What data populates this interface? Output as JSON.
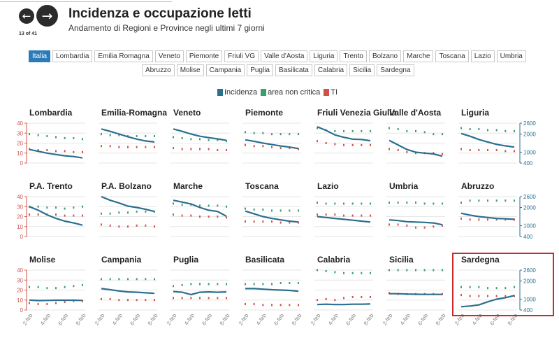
{
  "nav": {
    "prev_icon": "←",
    "next_icon": "→",
    "counter": "13 of 41"
  },
  "header": {
    "title": "Incidenza e occupazione letti",
    "subtitle": "Andamento di Regioni e Province negli ultimi 7 giorni"
  },
  "tabs": {
    "row1": [
      "Italia",
      "Lombardia",
      "Emilia Romagna",
      "Veneto",
      "Piemonte",
      "Friuli VG",
      "Valle d'Aosta",
      "Liguria",
      "Trento",
      "Bolzano",
      "Marche",
      "Toscana",
      "Lazio",
      "Umbria"
    ],
    "row2": [
      "Abruzzo",
      "Molise",
      "Campania",
      "Puglia",
      "Basilicata",
      "Calabria",
      "Sicilia",
      "Sardegna"
    ],
    "active": "Italia"
  },
  "legend": [
    {
      "label": "Incidenza",
      "color": "#2a6f8f"
    },
    {
      "label": "area non critica",
      "color": "#3a9e6e"
    },
    {
      "label": "TI",
      "color": "#d0514a"
    }
  ],
  "chart_data": {
    "type": "line",
    "x": [
      "2-feb",
      "3-feb",
      "4-feb",
      "5-feb",
      "6-feb",
      "7-feb",
      "8-feb"
    ],
    "x_tick_labels": [
      "2-feb",
      "4-feb",
      "6-feb",
      "8-feb"
    ],
    "left_axis": {
      "ticks": [
        0,
        10,
        20,
        30,
        40
      ],
      "ylim": [
        0,
        40
      ],
      "color": "#d0514a"
    },
    "right_axis": {
      "ticks": [
        400,
        1000,
        2000,
        2600
      ],
      "ylim": [
        400,
        2600
      ],
      "color": "#2a6f8f"
    },
    "highlighted_panel": "Sardegna",
    "panels": [
      {
        "region": "Lombardia",
        "incidenza": [
          1150,
          1050,
          950,
          870,
          800,
          760,
          680
        ],
        "area_non_critica": [
          29,
          28,
          27,
          26,
          25,
          25,
          24
        ],
        "ti": [
          14,
          13,
          13,
          12,
          12,
          11,
          11
        ]
      },
      {
        "region": "Emilia-Romagna",
        "incidenza": [
          2280,
          2150,
          2000,
          1850,
          1720,
          1620,
          1560
        ],
        "area_non_critica": [
          29,
          28,
          28,
          27,
          27,
          27,
          27
        ],
        "ti": [
          17,
          17,
          16,
          16,
          16,
          16,
          16
        ]
      },
      {
        "region": "Veneto",
        "incidenza": [
          2280,
          2150,
          2000,
          1880,
          1800,
          1730,
          1650
        ],
        "area_non_critica": [
          26,
          25,
          24,
          24,
          23,
          23,
          22
        ],
        "ti": [
          15,
          14,
          14,
          14,
          14,
          13,
          13
        ]
      },
      {
        "region": "Piemonte",
        "incidenza": [
          1680,
          1600,
          1500,
          1420,
          1340,
          1280,
          1200
        ],
        "area_non_critica": [
          31,
          30,
          30,
          29,
          29,
          29,
          29
        ],
        "ti": [
          18,
          17,
          17,
          16,
          15,
          15,
          14
        ]
      },
      {
        "region": "Friuli Venezia Giulia",
        "incidenza": [
          2400,
          2200,
          1950,
          1820,
          1720,
          1700,
          1630
        ],
        "area_non_critica": [
          35,
          33,
          32,
          32,
          32,
          32,
          32
        ],
        "ti": [
          22,
          20,
          19,
          18,
          18,
          18,
          18
        ]
      },
      {
        "region": "Valle d'Aosta",
        "incidenza": [
          1650,
          1400,
          1150,
          1000,
          950,
          900,
          780
        ],
        "area_non_critica": [
          35,
          34,
          32,
          32,
          31,
          29,
          29
        ],
        "ti": [
          14,
          13,
          11,
          10,
          10,
          10,
          9
        ]
      },
      {
        "region": "Liguria",
        "incidenza": [
          2030,
          1880,
          1700,
          1560,
          1430,
          1350,
          1280
        ],
        "area_non_critica": [
          35,
          34,
          34,
          33,
          33,
          32,
          32
        ],
        "ti": [
          14,
          13,
          13,
          13,
          13,
          12,
          12
        ]
      },
      {
        "region": "P.A. Trento",
        "incidenza": [
          2050,
          1850,
          1600,
          1400,
          1250,
          1150,
          1030
        ],
        "area_non_critica": [
          30,
          30,
          29,
          29,
          28,
          29,
          30
        ],
        "ti": [
          22,
          22,
          22,
          22,
          21,
          21,
          21
        ]
      },
      {
        "region": "P.A. Bolzano",
        "incidenza": [
          2600,
          2400,
          2250,
          2080,
          2000,
          1900,
          1780
        ],
        "area_non_critica": [
          23,
          23,
          24,
          24,
          25,
          25,
          25
        ],
        "ti": [
          12,
          11,
          10,
          10,
          11,
          11,
          10
        ]
      },
      {
        "region": "Marche",
        "incidenza": [
          2400,
          2300,
          2200,
          2000,
          1850,
          1780,
          1520
        ],
        "area_non_critica": [
          33,
          32,
          32,
          31,
          31,
          31,
          30
        ],
        "ti": [
          22,
          21,
          21,
          20,
          20,
          20,
          19
        ]
      },
      {
        "region": "Toscana",
        "incidenza": [
          1800,
          1650,
          1500,
          1400,
          1320,
          1250,
          1200
        ],
        "area_non_critica": [
          28,
          27,
          27,
          26,
          26,
          26,
          26
        ],
        "ti": [
          15,
          15,
          15,
          15,
          14,
          14,
          14
        ]
      },
      {
        "region": "Lazio",
        "incidenza": [
          1500,
          1450,
          1400,
          1350,
          1300,
          1250,
          1200
        ],
        "area_non_critica": [
          34,
          33,
          33,
          33,
          33,
          33,
          33
        ],
        "ti": [
          22,
          22,
          22,
          21,
          21,
          21,
          21
        ]
      },
      {
        "region": "Umbria",
        "incidenza": [
          1320,
          1280,
          1220,
          1200,
          1180,
          1150,
          1050
        ],
        "area_non_critica": [
          34,
          34,
          34,
          34,
          33,
          33,
          33
        ],
        "ti": [
          12,
          12,
          11,
          9,
          9,
          10,
          11
        ]
      },
      {
        "region": "Abruzzo",
        "incidenza": [
          1680,
          1580,
          1500,
          1450,
          1400,
          1380,
          1350
        ],
        "area_non_critica": [
          34,
          36,
          36,
          36,
          36,
          36,
          36
        ],
        "ti": [
          18,
          17,
          17,
          17,
          17,
          17,
          17
        ]
      },
      {
        "region": "Molise",
        "incidenza": [
          950,
          920,
          930,
          940,
          940,
          940,
          930
        ],
        "area_non_critica": [
          23,
          23,
          22,
          22,
          23,
          24,
          25
        ],
        "ti": [
          7,
          6,
          6,
          7,
          8,
          9,
          9
        ]
      },
      {
        "region": "Campania",
        "incidenza": [
          1580,
          1520,
          1450,
          1400,
          1380,
          1350,
          1320
        ],
        "area_non_critica": [
          31,
          31,
          31,
          31,
          31,
          31,
          31
        ],
        "ti": [
          11,
          11,
          10,
          10,
          10,
          10,
          10
        ]
      },
      {
        "region": "Puglia",
        "incidenza": [
          1420,
          1380,
          1250,
          1380,
          1400,
          1380,
          1400
        ],
        "area_non_critica": [
          24,
          25,
          26,
          26,
          26,
          26,
          26
        ],
        "ti": [
          12,
          12,
          12,
          12,
          12,
          12,
          12
        ]
      },
      {
        "region": "Basilicata",
        "incidenza": [
          1580,
          1580,
          1550,
          1520,
          1500,
          1480,
          1440
        ],
        "area_non_critica": [
          26,
          26,
          26,
          26,
          27,
          27,
          27
        ],
        "ti": [
          6,
          6,
          5,
          5,
          5,
          5,
          5
        ]
      },
      {
        "region": "Calabria",
        "incidenza": [
          700,
          720,
          700,
          700,
          720,
          720,
          730
        ],
        "area_non_critica": [
          40,
          39,
          38,
          37,
          37,
          37,
          37
        ],
        "ti": [
          10,
          11,
          10,
          12,
          13,
          13,
          13
        ]
      },
      {
        "region": "Sicilia",
        "incidenza": [
          1300,
          1300,
          1280,
          1270,
          1260,
          1260,
          1260
        ],
        "area_non_critica": [
          40,
          40,
          40,
          40,
          40,
          40,
          40
        ],
        "ti": [
          17,
          16,
          16,
          16,
          16,
          16,
          16
        ]
      },
      {
        "region": "Sardegna",
        "incidenza": [
          580,
          620,
          680,
          850,
          1000,
          1080,
          1200
        ],
        "area_non_critica": [
          23,
          23,
          23,
          22,
          22,
          22,
          23
        ],
        "ti": [
          15,
          14,
          14,
          14,
          14,
          14,
          14
        ]
      }
    ]
  }
}
